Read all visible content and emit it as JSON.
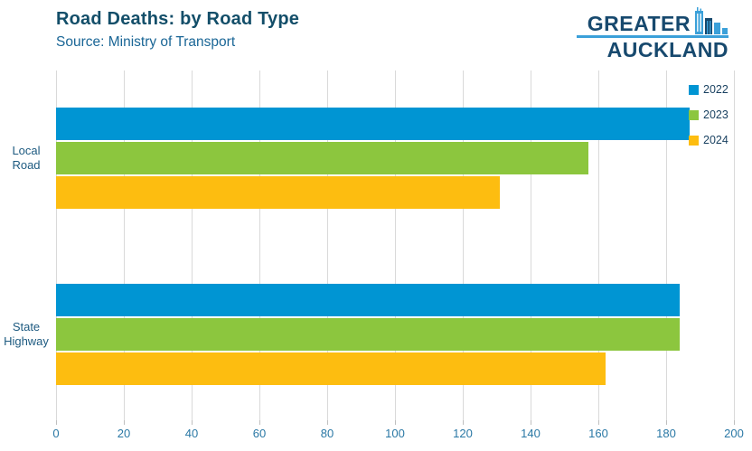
{
  "header": {
    "title": "Road Deaths: by Road Type",
    "subtitle": "Source: Ministry of Transport"
  },
  "logo": {
    "line1": "GREATER",
    "line2": "AUCKLAND",
    "dark_color": "#17496e",
    "light_color": "#3ba0d9"
  },
  "chart_data": {
    "type": "bar",
    "orientation": "horizontal",
    "title": "Road Deaths: by Road Type",
    "subtitle": "Source: Ministry of Transport",
    "categories": [
      "Local Road",
      "State Highway"
    ],
    "series": [
      {
        "name": "2022",
        "color": "#0095d3",
        "values": [
          187,
          184
        ]
      },
      {
        "name": "2023",
        "color": "#8cc63e",
        "values": [
          157,
          184
        ]
      },
      {
        "name": "2024",
        "color": "#fdbd10",
        "values": [
          131,
          162
        ]
      }
    ],
    "xlim": [
      0,
      200
    ],
    "xticks": [
      0,
      20,
      40,
      60,
      80,
      100,
      120,
      140,
      160,
      180,
      200
    ],
    "grid": "vertical-only",
    "gridline_color": "#d9d9d9",
    "legend_position": "top-right",
    "legend_entries": [
      "2022",
      "2023",
      "2024"
    ]
  }
}
